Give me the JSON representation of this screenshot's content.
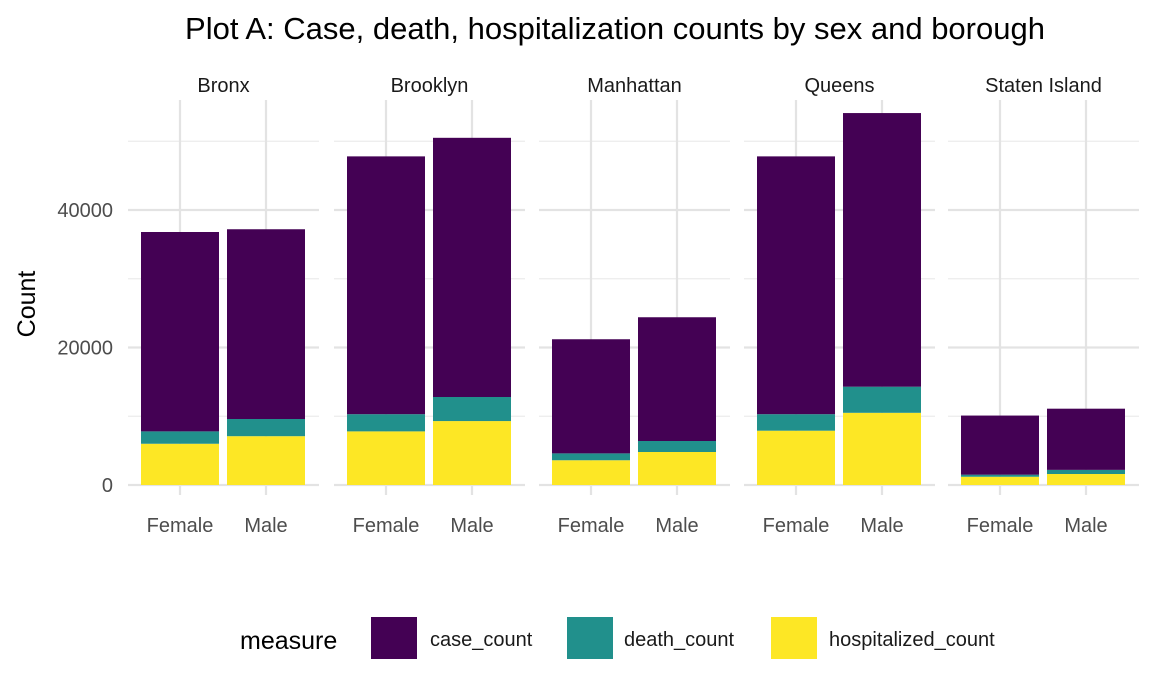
{
  "chart_data": {
    "type": "bar",
    "stacked": true,
    "faceted": true,
    "title": "Plot A: Case, death, hospitalization counts by sex and borough",
    "ylabel": "Count",
    "xlabel": "",
    "ylim": [
      0,
      56000
    ],
    "yticks": [
      0,
      20000,
      40000
    ],
    "ytick_labels": [
      "0",
      "20000",
      "40000"
    ],
    "grid": true,
    "legend_position": "bottom",
    "legend_title": "measure",
    "colors": {
      "case_count": "#440154",
      "death_count": "#21908C",
      "hospitalized_count": "#FDE725"
    },
    "stack_order": [
      "hospitalized_count",
      "death_count",
      "case_count"
    ],
    "legend_order": [
      "case_count",
      "death_count",
      "hospitalized_count"
    ],
    "categories": [
      "Female",
      "Male"
    ],
    "facets": [
      {
        "name": "Bronx",
        "categories": [
          "Female",
          "Male"
        ],
        "series": [
          {
            "name": "case_count",
            "values": [
              29000,
              27600
            ]
          },
          {
            "name": "death_count",
            "values": [
              1800,
              2500
            ]
          },
          {
            "name": "hospitalized_count",
            "values": [
              6000,
              7100
            ]
          }
        ]
      },
      {
        "name": "Brooklyn",
        "categories": [
          "Female",
          "Male"
        ],
        "series": [
          {
            "name": "case_count",
            "values": [
              37500,
              37700
            ]
          },
          {
            "name": "death_count",
            "values": [
              2500,
              3500
            ]
          },
          {
            "name": "hospitalized_count",
            "values": [
              7800,
              9300
            ]
          }
        ]
      },
      {
        "name": "Manhattan",
        "categories": [
          "Female",
          "Male"
        ],
        "series": [
          {
            "name": "case_count",
            "values": [
              16600,
              18000
            ]
          },
          {
            "name": "death_count",
            "values": [
              1000,
              1600
            ]
          },
          {
            "name": "hospitalized_count",
            "values": [
              3600,
              4800
            ]
          }
        ]
      },
      {
        "name": "Queens",
        "categories": [
          "Female",
          "Male"
        ],
        "series": [
          {
            "name": "case_count",
            "values": [
              37500,
              39800
            ]
          },
          {
            "name": "death_count",
            "values": [
              2400,
              3800
            ]
          },
          {
            "name": "hospitalized_count",
            "values": [
              7900,
              10500
            ]
          }
        ]
      },
      {
        "name": "Staten Island",
        "categories": [
          "Female",
          "Male"
        ],
        "series": [
          {
            "name": "case_count",
            "values": [
              8600,
              8900
            ]
          },
          {
            "name": "death_count",
            "values": [
              300,
              600
            ]
          },
          {
            "name": "hospitalized_count",
            "values": [
              1200,
              1600
            ]
          }
        ]
      }
    ]
  }
}
